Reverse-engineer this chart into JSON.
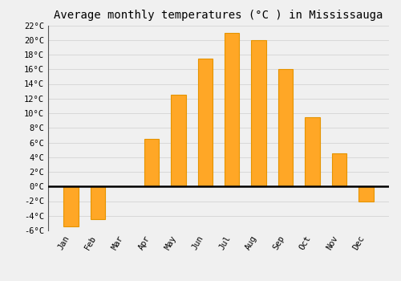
{
  "title": "Average monthly temperatures (°C ) in Mississauga",
  "months": [
    "Jan",
    "Feb",
    "Mar",
    "Apr",
    "May",
    "Jun",
    "Jul",
    "Aug",
    "Sep",
    "Oct",
    "Nov",
    "Dec"
  ],
  "values": [
    -5.5,
    -4.5,
    0,
    6.5,
    12.5,
    17.5,
    21,
    20,
    16,
    9.5,
    4.5,
    -2
  ],
  "bar_color": "#FFA726",
  "bar_edge_color": "#E59400",
  "ylim": [
    -6,
    22
  ],
  "yticks": [
    -6,
    -4,
    -2,
    0,
    2,
    4,
    6,
    8,
    10,
    12,
    14,
    16,
    18,
    20,
    22
  ],
  "ytick_labels": [
    "-6°C",
    "-4°C",
    "-2°C",
    "0°C",
    "2°C",
    "4°C",
    "6°C",
    "8°C",
    "10°C",
    "12°C",
    "14°C",
    "16°C",
    "18°C",
    "20°C",
    "22°C"
  ],
  "background_color": "#f0f0f0",
  "grid_color": "#d8d8d8",
  "zero_line_color": "#000000",
  "title_fontsize": 10,
  "tick_fontsize": 7.5,
  "bar_width": 0.55
}
